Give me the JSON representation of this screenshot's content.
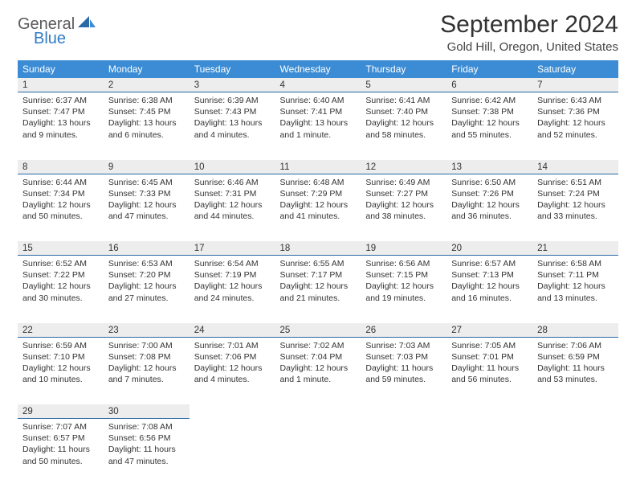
{
  "brand": {
    "general": "General",
    "blue": "Blue"
  },
  "title": "September 2024",
  "location": "Gold Hill, Oregon, United States",
  "colors": {
    "header_bg": "#3b8cd4",
    "header_text": "#ffffff",
    "daynum_bg": "#ededed",
    "daynum_border": "#2a6aa8",
    "brand_gray": "#5a5a5a",
    "brand_blue": "#2f7cc4"
  },
  "weekdays": [
    "Sunday",
    "Monday",
    "Tuesday",
    "Wednesday",
    "Thursday",
    "Friday",
    "Saturday"
  ],
  "weeks": [
    [
      {
        "day": "1",
        "sunrise": "Sunrise: 6:37 AM",
        "sunset": "Sunset: 7:47 PM",
        "daylight": "Daylight: 13 hours and 9 minutes."
      },
      {
        "day": "2",
        "sunrise": "Sunrise: 6:38 AM",
        "sunset": "Sunset: 7:45 PM",
        "daylight": "Daylight: 13 hours and 6 minutes."
      },
      {
        "day": "3",
        "sunrise": "Sunrise: 6:39 AM",
        "sunset": "Sunset: 7:43 PM",
        "daylight": "Daylight: 13 hours and 4 minutes."
      },
      {
        "day": "4",
        "sunrise": "Sunrise: 6:40 AM",
        "sunset": "Sunset: 7:41 PM",
        "daylight": "Daylight: 13 hours and 1 minute."
      },
      {
        "day": "5",
        "sunrise": "Sunrise: 6:41 AM",
        "sunset": "Sunset: 7:40 PM",
        "daylight": "Daylight: 12 hours and 58 minutes."
      },
      {
        "day": "6",
        "sunrise": "Sunrise: 6:42 AM",
        "sunset": "Sunset: 7:38 PM",
        "daylight": "Daylight: 12 hours and 55 minutes."
      },
      {
        "day": "7",
        "sunrise": "Sunrise: 6:43 AM",
        "sunset": "Sunset: 7:36 PM",
        "daylight": "Daylight: 12 hours and 52 minutes."
      }
    ],
    [
      {
        "day": "8",
        "sunrise": "Sunrise: 6:44 AM",
        "sunset": "Sunset: 7:34 PM",
        "daylight": "Daylight: 12 hours and 50 minutes."
      },
      {
        "day": "9",
        "sunrise": "Sunrise: 6:45 AM",
        "sunset": "Sunset: 7:33 PM",
        "daylight": "Daylight: 12 hours and 47 minutes."
      },
      {
        "day": "10",
        "sunrise": "Sunrise: 6:46 AM",
        "sunset": "Sunset: 7:31 PM",
        "daylight": "Daylight: 12 hours and 44 minutes."
      },
      {
        "day": "11",
        "sunrise": "Sunrise: 6:48 AM",
        "sunset": "Sunset: 7:29 PM",
        "daylight": "Daylight: 12 hours and 41 minutes."
      },
      {
        "day": "12",
        "sunrise": "Sunrise: 6:49 AM",
        "sunset": "Sunset: 7:27 PM",
        "daylight": "Daylight: 12 hours and 38 minutes."
      },
      {
        "day": "13",
        "sunrise": "Sunrise: 6:50 AM",
        "sunset": "Sunset: 7:26 PM",
        "daylight": "Daylight: 12 hours and 36 minutes."
      },
      {
        "day": "14",
        "sunrise": "Sunrise: 6:51 AM",
        "sunset": "Sunset: 7:24 PM",
        "daylight": "Daylight: 12 hours and 33 minutes."
      }
    ],
    [
      {
        "day": "15",
        "sunrise": "Sunrise: 6:52 AM",
        "sunset": "Sunset: 7:22 PM",
        "daylight": "Daylight: 12 hours and 30 minutes."
      },
      {
        "day": "16",
        "sunrise": "Sunrise: 6:53 AM",
        "sunset": "Sunset: 7:20 PM",
        "daylight": "Daylight: 12 hours and 27 minutes."
      },
      {
        "day": "17",
        "sunrise": "Sunrise: 6:54 AM",
        "sunset": "Sunset: 7:19 PM",
        "daylight": "Daylight: 12 hours and 24 minutes."
      },
      {
        "day": "18",
        "sunrise": "Sunrise: 6:55 AM",
        "sunset": "Sunset: 7:17 PM",
        "daylight": "Daylight: 12 hours and 21 minutes."
      },
      {
        "day": "19",
        "sunrise": "Sunrise: 6:56 AM",
        "sunset": "Sunset: 7:15 PM",
        "daylight": "Daylight: 12 hours and 19 minutes."
      },
      {
        "day": "20",
        "sunrise": "Sunrise: 6:57 AM",
        "sunset": "Sunset: 7:13 PM",
        "daylight": "Daylight: 12 hours and 16 minutes."
      },
      {
        "day": "21",
        "sunrise": "Sunrise: 6:58 AM",
        "sunset": "Sunset: 7:11 PM",
        "daylight": "Daylight: 12 hours and 13 minutes."
      }
    ],
    [
      {
        "day": "22",
        "sunrise": "Sunrise: 6:59 AM",
        "sunset": "Sunset: 7:10 PM",
        "daylight": "Daylight: 12 hours and 10 minutes."
      },
      {
        "day": "23",
        "sunrise": "Sunrise: 7:00 AM",
        "sunset": "Sunset: 7:08 PM",
        "daylight": "Daylight: 12 hours and 7 minutes."
      },
      {
        "day": "24",
        "sunrise": "Sunrise: 7:01 AM",
        "sunset": "Sunset: 7:06 PM",
        "daylight": "Daylight: 12 hours and 4 minutes."
      },
      {
        "day": "25",
        "sunrise": "Sunrise: 7:02 AM",
        "sunset": "Sunset: 7:04 PM",
        "daylight": "Daylight: 12 hours and 1 minute."
      },
      {
        "day": "26",
        "sunrise": "Sunrise: 7:03 AM",
        "sunset": "Sunset: 7:03 PM",
        "daylight": "Daylight: 11 hours and 59 minutes."
      },
      {
        "day": "27",
        "sunrise": "Sunrise: 7:05 AM",
        "sunset": "Sunset: 7:01 PM",
        "daylight": "Daylight: 11 hours and 56 minutes."
      },
      {
        "day": "28",
        "sunrise": "Sunrise: 7:06 AM",
        "sunset": "Sunset: 6:59 PM",
        "daylight": "Daylight: 11 hours and 53 minutes."
      }
    ],
    [
      {
        "day": "29",
        "sunrise": "Sunrise: 7:07 AM",
        "sunset": "Sunset: 6:57 PM",
        "daylight": "Daylight: 11 hours and 50 minutes."
      },
      {
        "day": "30",
        "sunrise": "Sunrise: 7:08 AM",
        "sunset": "Sunset: 6:56 PM",
        "daylight": "Daylight: 11 hours and 47 minutes."
      },
      null,
      null,
      null,
      null,
      null
    ]
  ]
}
